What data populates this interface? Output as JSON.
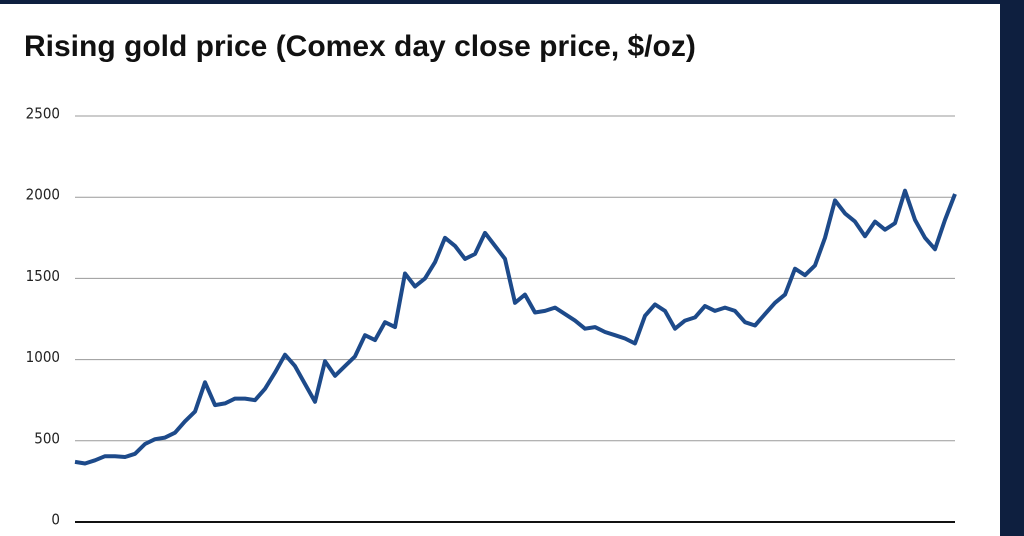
{
  "chart_data": {
    "type": "line",
    "title": "Rising gold price (Comex day close price, $/oz)",
    "values": [
      370,
      360,
      380,
      405,
      405,
      400,
      420,
      480,
      510,
      520,
      550,
      620,
      680,
      860,
      720,
      730,
      760,
      760,
      750,
      820,
      920,
      1030,
      960,
      850,
      740,
      990,
      900,
      960,
      1020,
      1150,
      1120,
      1230,
      1200,
      1530,
      1450,
      1500,
      1600,
      1750,
      1700,
      1620,
      1650,
      1780,
      1700,
      1620,
      1350,
      1400,
      1290,
      1300,
      1320,
      1280,
      1240,
      1190,
      1200,
      1170,
      1150,
      1130,
      1100,
      1270,
      1340,
      1300,
      1190,
      1240,
      1260,
      1330,
      1300,
      1320,
      1300,
      1230,
      1210,
      1280,
      1350,
      1400,
      1560,
      1520,
      1580,
      1750,
      1980,
      1900,
      1850,
      1760,
      1850,
      1800,
      1840,
      2040,
      1860,
      1750,
      1680,
      1860,
      2020
    ],
    "color": "#1d4a8a",
    "ylim": [
      0,
      2500
    ],
    "yticks": [
      0,
      500,
      1000,
      1500,
      2000,
      2500
    ],
    "grid": true
  }
}
